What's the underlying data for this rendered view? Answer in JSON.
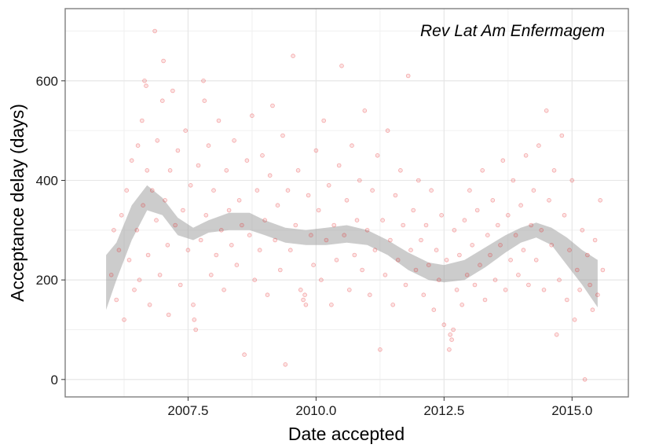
{
  "chart_data": {
    "type": "scatter",
    "xlabel": "Date accepted",
    "ylabel": "Acceptance delay (days)",
    "annotation": "Rev Lat Am Enfermagem",
    "xlim": [
      2005.1,
      2016.1
    ],
    "ylim": [
      -35,
      745
    ],
    "x_ticks": [
      2007.5,
      2010.0,
      2012.5,
      2015.0
    ],
    "x_tick_labels": [
      "2007.5",
      "2010.0",
      "2012.5",
      "2015.0"
    ],
    "y_ticks": [
      0,
      200,
      400,
      600
    ],
    "y_tick_labels": [
      "0",
      "200",
      "400",
      "600"
    ],
    "grid": true,
    "point_color": "#e31a1c",
    "band_color": "#999999",
    "smooth_band": {
      "x": [
        2005.9,
        2006.1,
        2006.4,
        2006.7,
        2007.0,
        2007.3,
        2007.6,
        2007.9,
        2008.3,
        2008.7,
        2009.0,
        2009.4,
        2009.8,
        2010.2,
        2010.6,
        2011.0,
        2011.4,
        2011.8,
        2012.2,
        2012.5,
        2012.9,
        2013.3,
        2013.7,
        2014.0,
        2014.3,
        2014.6,
        2014.9,
        2015.2,
        2015.5
      ],
      "lower": [
        140,
        200,
        280,
        340,
        330,
        290,
        280,
        295,
        300,
        300,
        290,
        275,
        270,
        270,
        275,
        270,
        250,
        220,
        200,
        195,
        200,
        225,
        255,
        275,
        285,
        270,
        230,
        190,
        145
      ],
      "upper": [
        250,
        275,
        350,
        390,
        365,
        325,
        305,
        320,
        335,
        335,
        320,
        305,
        300,
        305,
        310,
        300,
        280,
        255,
        235,
        230,
        240,
        265,
        290,
        305,
        315,
        305,
        285,
        260,
        240
      ]
    },
    "points": [
      [
        2006.0,
        210
      ],
      [
        2006.05,
        300
      ],
      [
        2006.1,
        160
      ],
      [
        2006.15,
        260
      ],
      [
        2006.2,
        330
      ],
      [
        2006.25,
        120
      ],
      [
        2006.3,
        380
      ],
      [
        2006.35,
        240
      ],
      [
        2006.4,
        440
      ],
      [
        2006.45,
        180
      ],
      [
        2006.5,
        300
      ],
      [
        2006.52,
        470
      ],
      [
        2006.55,
        200
      ],
      [
        2006.6,
        520
      ],
      [
        2006.62,
        350
      ],
      [
        2006.65,
        600
      ],
      [
        2006.68,
        590
      ],
      [
        2006.7,
        420
      ],
      [
        2006.72,
        250
      ],
      [
        2006.75,
        150
      ],
      [
        2006.8,
        380
      ],
      [
        2006.85,
        700
      ],
      [
        2006.88,
        320
      ],
      [
        2006.9,
        480
      ],
      [
        2006.95,
        210
      ],
      [
        2007.0,
        560
      ],
      [
        2007.02,
        640
      ],
      [
        2007.05,
        360
      ],
      [
        2007.1,
        270
      ],
      [
        2007.12,
        130
      ],
      [
        2007.15,
        420
      ],
      [
        2007.2,
        580
      ],
      [
        2007.25,
        310
      ],
      [
        2007.3,
        460
      ],
      [
        2007.35,
        190
      ],
      [
        2007.4,
        340
      ],
      [
        2007.45,
        500
      ],
      [
        2007.5,
        260
      ],
      [
        2007.55,
        390
      ],
      [
        2007.6,
        150
      ],
      [
        2007.62,
        120
      ],
      [
        2007.65,
        100
      ],
      [
        2007.7,
        430
      ],
      [
        2007.75,
        280
      ],
      [
        2007.8,
        600
      ],
      [
        2007.82,
        560
      ],
      [
        2007.85,
        330
      ],
      [
        2007.9,
        470
      ],
      [
        2007.95,
        210
      ],
      [
        2008.0,
        380
      ],
      [
        2008.05,
        250
      ],
      [
        2008.1,
        520
      ],
      [
        2008.15,
        300
      ],
      [
        2008.2,
        180
      ],
      [
        2008.25,
        420
      ],
      [
        2008.3,
        340
      ],
      [
        2008.35,
        270
      ],
      [
        2008.4,
        480
      ],
      [
        2008.45,
        230
      ],
      [
        2008.5,
        360
      ],
      [
        2008.55,
        310
      ],
      [
        2008.6,
        50
      ],
      [
        2008.65,
        440
      ],
      [
        2008.7,
        290
      ],
      [
        2008.75,
        530
      ],
      [
        2008.8,
        200
      ],
      [
        2008.85,
        380
      ],
      [
        2008.9,
        260
      ],
      [
        2008.95,
        450
      ],
      [
        2009.0,
        320
      ],
      [
        2009.05,
        170
      ],
      [
        2009.1,
        410
      ],
      [
        2009.15,
        550
      ],
      [
        2009.2,
        280
      ],
      [
        2009.25,
        350
      ],
      [
        2009.3,
        220
      ],
      [
        2009.35,
        490
      ],
      [
        2009.4,
        30
      ],
      [
        2009.45,
        380
      ],
      [
        2009.5,
        260
      ],
      [
        2009.55,
        650
      ],
      [
        2009.6,
        310
      ],
      [
        2009.65,
        420
      ],
      [
        2009.7,
        180
      ],
      [
        2009.75,
        160
      ],
      [
        2009.78,
        170
      ],
      [
        2009.8,
        150
      ],
      [
        2009.85,
        370
      ],
      [
        2009.9,
        290
      ],
      [
        2009.95,
        230
      ],
      [
        2010.0,
        460
      ],
      [
        2010.05,
        340
      ],
      [
        2010.1,
        200
      ],
      [
        2010.15,
        520
      ],
      [
        2010.2,
        280
      ],
      [
        2010.25,
        390
      ],
      [
        2010.3,
        150
      ],
      [
        2010.35,
        310
      ],
      [
        2010.4,
        240
      ],
      [
        2010.45,
        430
      ],
      [
        2010.5,
        630
      ],
      [
        2010.55,
        290
      ],
      [
        2010.6,
        360
      ],
      [
        2010.65,
        180
      ],
      [
        2010.7,
        470
      ],
      [
        2010.75,
        250
      ],
      [
        2010.8,
        320
      ],
      [
        2010.85,
        400
      ],
      [
        2010.9,
        220
      ],
      [
        2010.95,
        540
      ],
      [
        2011.0,
        300
      ],
      [
        2011.05,
        170
      ],
      [
        2011.1,
        380
      ],
      [
        2011.15,
        260
      ],
      [
        2011.2,
        450
      ],
      [
        2011.25,
        60
      ],
      [
        2011.3,
        320
      ],
      [
        2011.35,
        210
      ],
      [
        2011.4,
        500
      ],
      [
        2011.45,
        280
      ],
      [
        2011.5,
        150
      ],
      [
        2011.55,
        370
      ],
      [
        2011.6,
        240
      ],
      [
        2011.65,
        420
      ],
      [
        2011.7,
        310
      ],
      [
        2011.75,
        190
      ],
      [
        2011.8,
        610
      ],
      [
        2011.85,
        260
      ],
      [
        2011.9,
        340
      ],
      [
        2011.95,
        220
      ],
      [
        2012.0,
        400
      ],
      [
        2012.05,
        280
      ],
      [
        2012.1,
        170
      ],
      [
        2012.15,
        310
      ],
      [
        2012.2,
        230
      ],
      [
        2012.25,
        380
      ],
      [
        2012.3,
        140
      ],
      [
        2012.35,
        260
      ],
      [
        2012.4,
        200
      ],
      [
        2012.45,
        330
      ],
      [
        2012.5,
        110
      ],
      [
        2012.55,
        240
      ],
      [
        2012.6,
        60
      ],
      [
        2012.62,
        90
      ],
      [
        2012.65,
        80
      ],
      [
        2012.68,
        100
      ],
      [
        2012.7,
        300
      ],
      [
        2012.75,
        180
      ],
      [
        2012.8,
        250
      ],
      [
        2012.85,
        150
      ],
      [
        2012.9,
        320
      ],
      [
        2012.95,
        210
      ],
      [
        2013.0,
        380
      ],
      [
        2013.05,
        270
      ],
      [
        2013.1,
        190
      ],
      [
        2013.15,
        340
      ],
      [
        2013.2,
        230
      ],
      [
        2013.25,
        420
      ],
      [
        2013.3,
        160
      ],
      [
        2013.35,
        290
      ],
      [
        2013.4,
        250
      ],
      [
        2013.45,
        360
      ],
      [
        2013.5,
        200
      ],
      [
        2013.55,
        310
      ],
      [
        2013.6,
        270
      ],
      [
        2013.65,
        440
      ],
      [
        2013.7,
        180
      ],
      [
        2013.75,
        330
      ],
      [
        2013.8,
        240
      ],
      [
        2013.85,
        400
      ],
      [
        2013.9,
        290
      ],
      [
        2013.95,
        210
      ],
      [
        2014.0,
        350
      ],
      [
        2014.05,
        260
      ],
      [
        2014.1,
        450
      ],
      [
        2014.15,
        190
      ],
      [
        2014.2,
        310
      ],
      [
        2014.25,
        380
      ],
      [
        2014.3,
        240
      ],
      [
        2014.35,
        470
      ],
      [
        2014.4,
        300
      ],
      [
        2014.45,
        180
      ],
      [
        2014.5,
        540
      ],
      [
        2014.55,
        360
      ],
      [
        2014.6,
        270
      ],
      [
        2014.65,
        420
      ],
      [
        2014.7,
        90
      ],
      [
        2014.75,
        200
      ],
      [
        2014.8,
        490
      ],
      [
        2014.85,
        330
      ],
      [
        2014.9,
        160
      ],
      [
        2014.95,
        260
      ],
      [
        2015.0,
        400
      ],
      [
        2015.05,
        120
      ],
      [
        2015.1,
        220
      ],
      [
        2015.15,
        180
      ],
      [
        2015.2,
        300
      ],
      [
        2015.25,
        0
      ],
      [
        2015.3,
        250
      ],
      [
        2015.35,
        190
      ],
      [
        2015.4,
        140
      ],
      [
        2015.45,
        280
      ],
      [
        2015.5,
        170
      ],
      [
        2015.55,
        360
      ],
      [
        2015.6,
        220
      ]
    ]
  }
}
